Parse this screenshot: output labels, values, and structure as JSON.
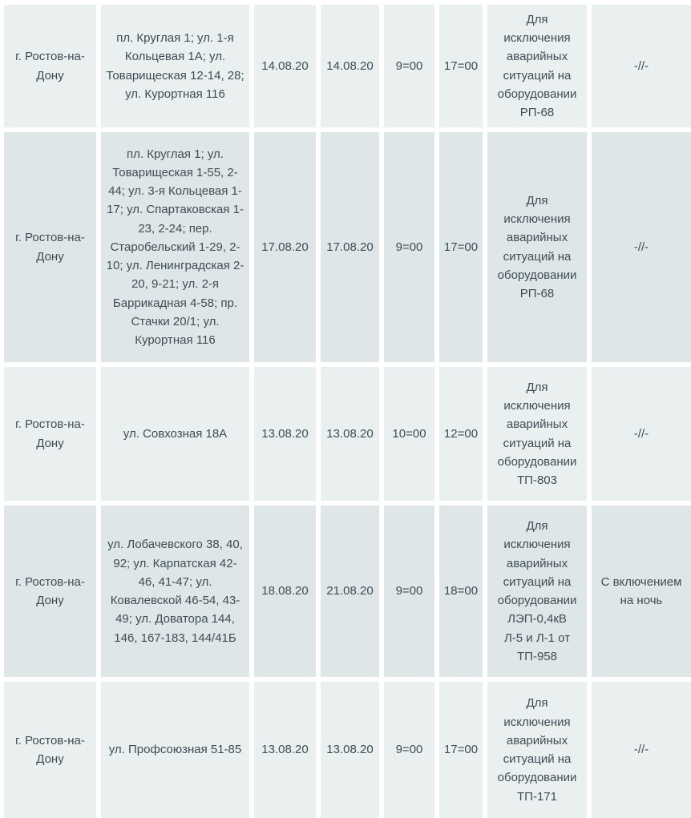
{
  "colors": {
    "page_background": "#ffffff",
    "row_light_background": "#eaeff0",
    "row_dark_background": "#dfe6e8",
    "text": "#3e4d55",
    "grid_gap": "#ffffff"
  },
  "table": {
    "columns_semantic": [
      "city",
      "addresses",
      "date_start",
      "date_end",
      "time_start",
      "time_end",
      "reason",
      "note"
    ],
    "rows": [
      {
        "city": "г. Ростов-на-Дону",
        "addresses": "пл. Круглая 1; ул. 1-я Кольцевая 1А; ул. Товарищеская 12-14, 28; ул. Курортная 116",
        "date_start": "14.08.20",
        "date_end": "14.08.20",
        "time_start": "9=00",
        "time_end": "17=00",
        "reason": "Для исключения аварийных ситуаций на оборудовании РП-68",
        "note": "-//-"
      },
      {
        "city": "г. Ростов-на-Дону",
        "addresses": "пл. Круглая 1; ул. Товарищеская 1-55, 2-44; ул. 3-я Кольцевая 1-17; ул. Спартаковская 1-23, 2-24; пер. Старобельский 1-29, 2-10; ул. Ленинградская 2-20, 9-21; ул. 2-я Баррикадная 4-58; пр. Стачки 20/1; ул. Курортная 116",
        "date_start": "17.08.20",
        "date_end": "17.08.20",
        "time_start": "9=00",
        "time_end": "17=00",
        "reason": "Для исключения аварийных ситуаций на оборудовании РП-68",
        "note": "-//-"
      },
      {
        "city": "г. Ростов-на-Дону",
        "addresses": "ул. Совхозная 18А",
        "date_start": "13.08.20",
        "date_end": "13.08.20",
        "time_start": "10=00",
        "time_end": "12=00",
        "reason": "Для исключения аварийных ситуаций на оборудовании ТП-803",
        "note": "-//-"
      },
      {
        "city": "г. Ростов-на-Дону",
        "addresses": "ул. Лобачевского 38, 40, 92; ул. Карпатская 42-46, 41-47; ул. Ковалевской 46-54, 43-49; ул. Доватора 144, 146, 167-183, 144/41Б",
        "date_start": "18.08.20",
        "date_end": "21.08.20",
        "time_start": "9=00",
        "time_end": "18=00",
        "reason": "Для исключения аварийных ситуаций на оборудовании ЛЭП-0,4кВ Л-5 и Л-1 от ТП-958",
        "note": "С включением на ночь"
      },
      {
        "city": "г. Ростов-на-Дону",
        "addresses": "ул. Профсоюзная 51-85",
        "date_start": "13.08.20",
        "date_end": "13.08.20",
        "time_start": "9=00",
        "time_end": "17=00",
        "reason": "Для исключения аварийных ситуаций на оборудовании ТП-171",
        "note": "-//-"
      }
    ]
  }
}
